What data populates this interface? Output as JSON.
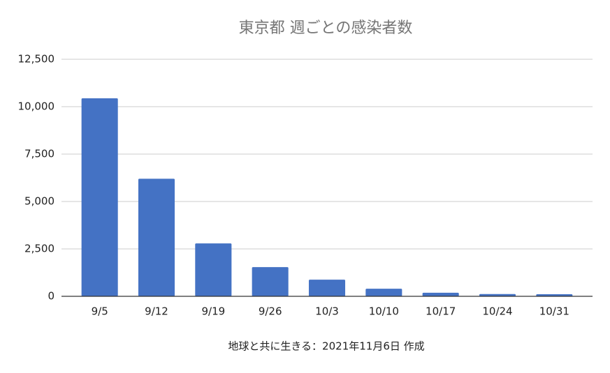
{
  "chart_data": {
    "type": "bar",
    "title": "東京都 週ごとの感染者数",
    "x_label": "地球と共に生きる：2021年11月6日 作成",
    "categories": [
      "9/5",
      "9/12",
      "9/19",
      "9/26",
      "10/3",
      "10/10",
      "10/17",
      "10/24",
      "10/31"
    ],
    "values": [
      10440,
      6200,
      2790,
      1540,
      880,
      400,
      190,
      120,
      110
    ],
    "color": "#4472c4",
    "ylim": [
      0,
      12500
    ],
    "yticks": [
      0,
      {
        "value": 2500,
        "label": "2,500"
      },
      {
        "value": 5000,
        "label": "5,000"
      },
      {
        "value": 7500,
        "label": "7,500"
      },
      {
        "value": 10000,
        "label": "10,000"
      },
      {
        "value": 12500,
        "label": "12,500"
      }
    ],
    "grid": true
  }
}
